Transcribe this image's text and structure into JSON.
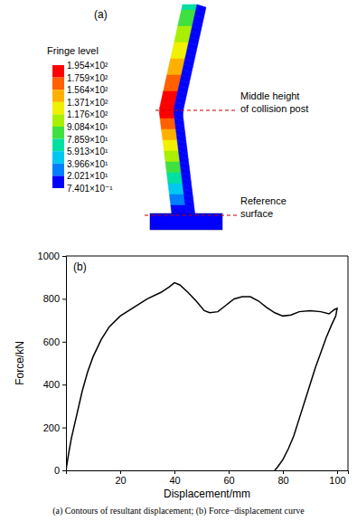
{
  "caption": "(a) Contours of resultant displacement; (b) Force−displacement curve",
  "chart_data": [
    {
      "type": "contour",
      "panel_label": "(a)",
      "colorbar": {
        "title": "Fringe level",
        "ticks": [
          {
            "value": 195.4,
            "label": "1.954×10²"
          },
          {
            "value": 175.9,
            "label": "1.759×10²"
          },
          {
            "value": 156.4,
            "label": "1.564×10²"
          },
          {
            "value": 137.1,
            "label": "1.371×10²"
          },
          {
            "value": 117.6,
            "label": "1.176×10²"
          },
          {
            "value": 90.84,
            "label": "9.084×10¹"
          },
          {
            "value": 78.59,
            "label": "7.859×10¹"
          },
          {
            "value": 59.13,
            "label": "5.913×10¹"
          },
          {
            "value": 39.66,
            "label": "3.966×10¹"
          },
          {
            "value": 20.21,
            "label": "2.021×10¹"
          },
          {
            "value": 0.7401,
            "label": "7.401×10⁻¹"
          }
        ],
        "colors": [
          "#ff0000",
          "#ff6000",
          "#ffb000",
          "#f0f000",
          "#a8f000",
          "#40e040",
          "#00e0a0",
          "#00c8f0",
          "#0080ff",
          "#0000ff"
        ]
      },
      "annotations": [
        {
          "lines": [
            "Middle height",
            "of collision post"
          ]
        },
        {
          "lines": [
            "Reference",
            "surface"
          ]
        }
      ]
    },
    {
      "type": "line",
      "panel_label": "(b)",
      "x_label": "Displacement/mm",
      "y_label": "Force/kN",
      "x": [
        0,
        1,
        2,
        4,
        6,
        8,
        10,
        13,
        16,
        20,
        25,
        30,
        35,
        38,
        40,
        42,
        45,
        48,
        51,
        53,
        56,
        59,
        62,
        65,
        68,
        71,
        74,
        77,
        80,
        83,
        86,
        90,
        94,
        97,
        99,
        100,
        99.5,
        98,
        96,
        94,
        92,
        90,
        88,
        86,
        84,
        82,
        80,
        78,
        77
      ],
      "series": [
        {
          "color": "#000000",
          "values": [
            0,
            80,
            150,
            260,
            370,
            460,
            530,
            610,
            670,
            720,
            760,
            800,
            830,
            855,
            875,
            865,
            830,
            790,
            745,
            735,
            740,
            770,
            800,
            810,
            810,
            790,
            760,
            735,
            720,
            725,
            740,
            745,
            740,
            730,
            750,
            755,
            720,
            680,
            620,
            550,
            480,
            400,
            320,
            240,
            160,
            100,
            50,
            15,
            0
          ]
        }
      ],
      "xlim": [
        0,
        104
      ],
      "ylim": [
        0,
        1000
      ],
      "xticks": [
        20,
        40,
        60,
        80,
        100
      ],
      "yticks": [
        0,
        200,
        400,
        600,
        800,
        1000
      ],
      "grid": false
    }
  ]
}
